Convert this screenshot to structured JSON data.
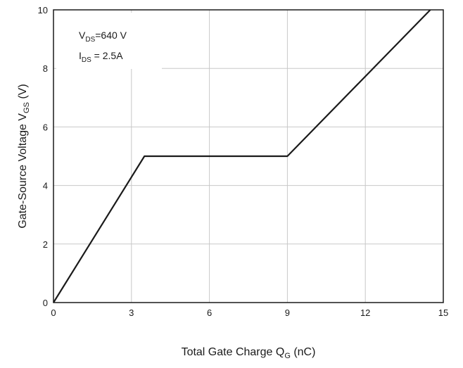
{
  "chart_data": {
    "type": "line",
    "xlabel": "Total Gate Charge Q",
    "xlabel_sub": "G",
    "xlabel_unit": " (nC)",
    "ylabel": "Gate-Source Voltage V",
    "ylabel_sub": "GS",
    "ylabel_unit": " (V)",
    "xlim": [
      0,
      15
    ],
    "ylim": [
      0,
      10
    ],
    "xticks": [
      "0",
      "3",
      "6",
      "9",
      "12",
      "15"
    ],
    "yticks": [
      "0",
      "2",
      "4",
      "6",
      "8",
      "10"
    ],
    "grid": true,
    "series": [
      {
        "x": [
          0,
          3.5,
          9,
          14.5
        ],
        "y": [
          0,
          5,
          5,
          10
        ]
      }
    ],
    "annotations": [
      {
        "pre": "V",
        "sub": "DS",
        "post": "=640 V"
      },
      {
        "pre": "I",
        "sub": "DS",
        "post": " = 2.5A"
      }
    ],
    "colors": {
      "line": "#1a1a1a",
      "grid": "#c8c8c8",
      "frame": "#1a1a1a"
    }
  }
}
